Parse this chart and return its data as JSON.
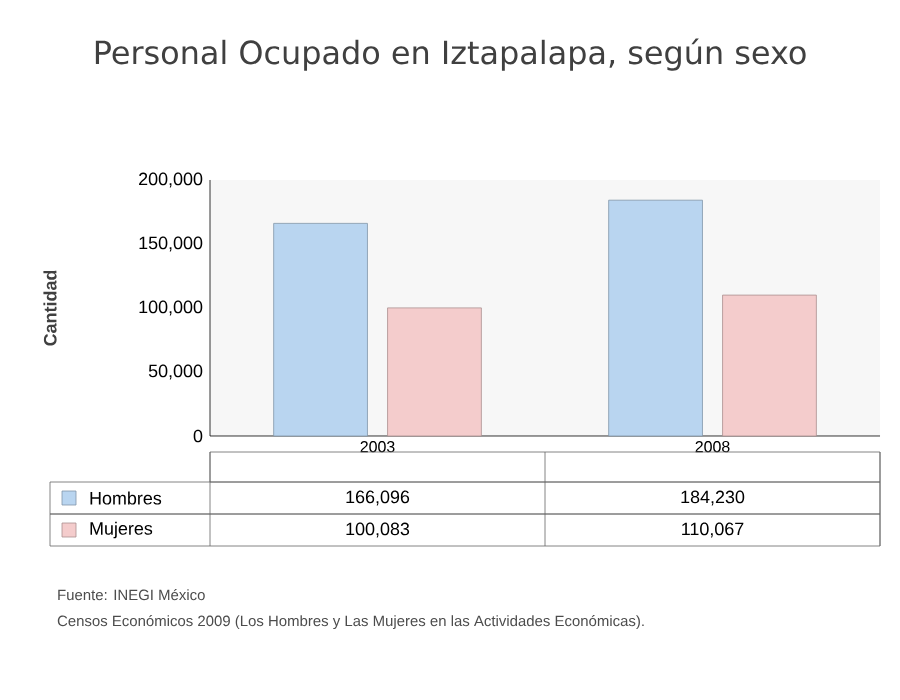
{
  "chart_data": {
    "type": "bar",
    "title": "Personal Ocupado en Iztapalapa,  según sexo",
    "ylabel": "Cantidad",
    "categories": [
      "2003",
      "2008"
    ],
    "series": [
      {
        "name": "Hombres",
        "color": "#b9d5f0",
        "values": [
          166096,
          184230
        ],
        "value_labels": [
          "166,096",
          "184,230"
        ]
      },
      {
        "name": "Mujeres",
        "color": "#f4cccc",
        "values": [
          100083,
          110067
        ],
        "value_labels": [
          "100,083",
          "110,067"
        ]
      }
    ],
    "ylim": [
      0,
      200000
    ],
    "yticks": [
      0,
      {
        "value": 50000,
        "label": "50,000"
      },
      {
        "value": 100000,
        "label": "100,000"
      },
      {
        "value": 150000,
        "label": "150,000"
      },
      {
        "value": 200000,
        "label": "200,000"
      }
    ],
    "legend": "bottom",
    "annotations": [
      "Fuente: INEGI México",
      "Censos Económicos 2009 (Los Hombres y Las Mujeres en las Actividades Económicas)."
    ]
  }
}
